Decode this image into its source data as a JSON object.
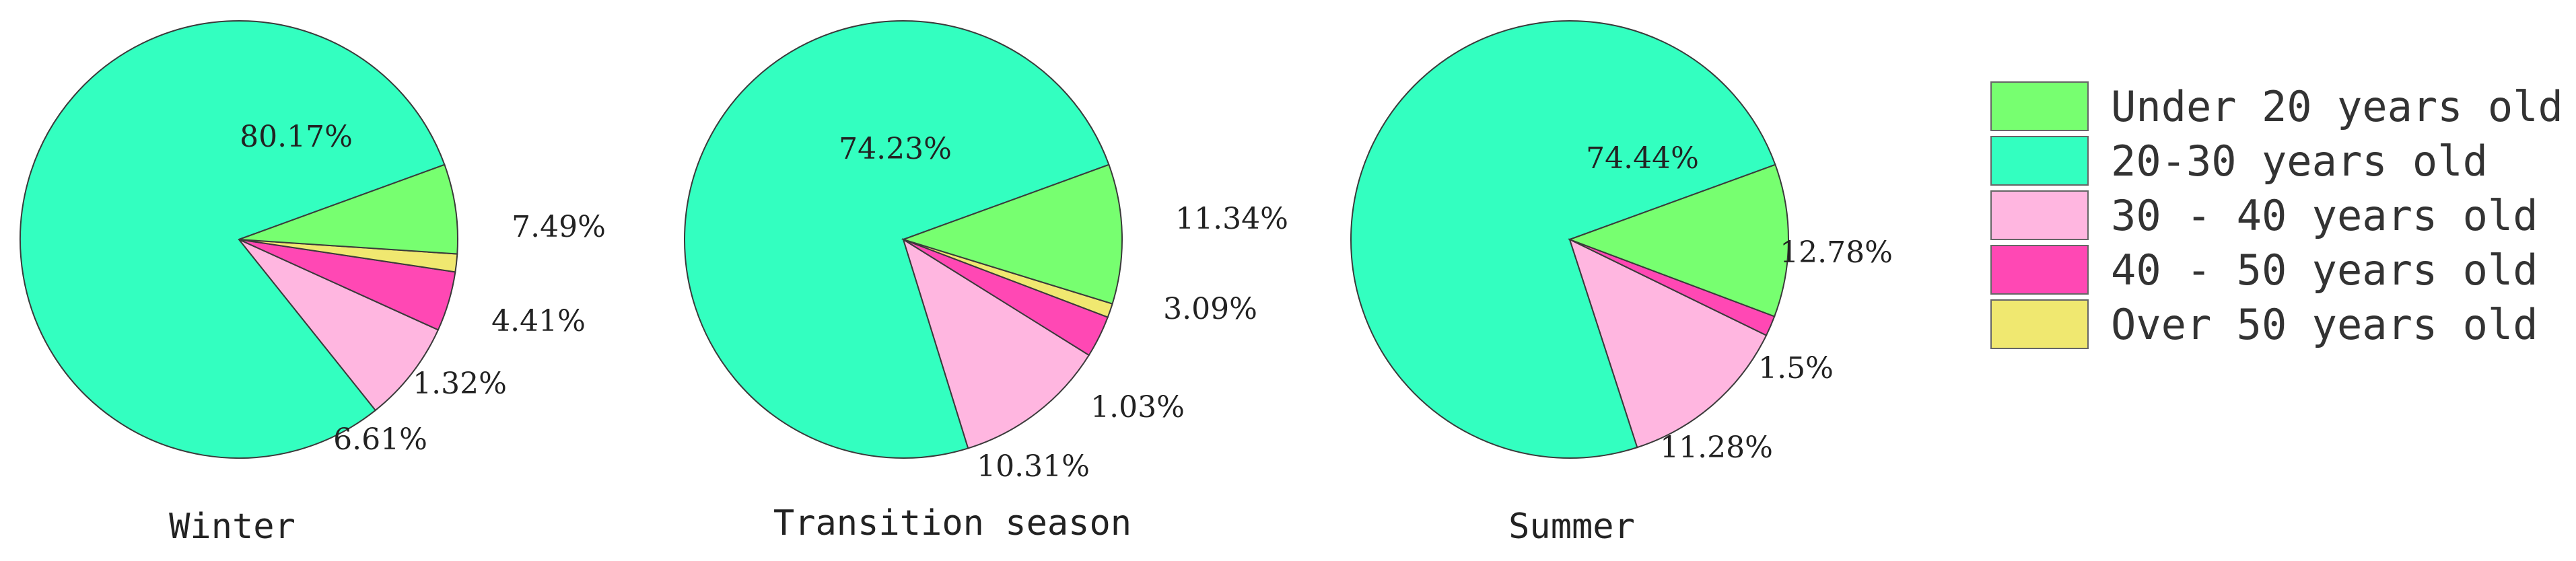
{
  "chart_data": [
    {
      "type": "pie",
      "title": "Winter",
      "slices": [
        {
          "category": "20-30 years old",
          "value": 80.17,
          "label": "80.17%"
        },
        {
          "category": "30 - 40 years old",
          "value": 7.49,
          "label": "7.49%"
        },
        {
          "category": "40 - 50 years old",
          "value": 4.41,
          "label": "4.41%"
        },
        {
          "category": "Over 50 years old",
          "value": 1.32,
          "label": "1.32%"
        },
        {
          "category": "Under 20 years old",
          "value": 6.61,
          "label": "6.61%"
        }
      ]
    },
    {
      "type": "pie",
      "title": "Transition season",
      "slices": [
        {
          "category": "20-30 years old",
          "value": 74.23,
          "label": "74.23%"
        },
        {
          "category": "30 - 40 years old",
          "value": 11.34,
          "label": "11.34%"
        },
        {
          "category": "40 - 50 years old",
          "value": 3.09,
          "label": "3.09%"
        },
        {
          "category": "Over 50 years old",
          "value": 1.03,
          "label": "1.03%"
        },
        {
          "category": "Under 20 years old",
          "value": 10.31,
          "label": "10.31%"
        }
      ]
    },
    {
      "type": "pie",
      "title": "Summer",
      "slices": [
        {
          "category": "20-30 years old",
          "value": 74.44,
          "label": "74.44%"
        },
        {
          "category": "30 - 40 years old",
          "value": 12.78,
          "label": "12.78%"
        },
        {
          "category": "40 - 50 years old",
          "value": 1.5,
          "label": "1.5%"
        },
        {
          "category": "Under 20 years old",
          "value": 11.28,
          "label": "11.28%"
        }
      ]
    }
  ],
  "legend": {
    "placement": "right",
    "entries": [
      {
        "label": "Under 20 years old",
        "color": "#77ff70"
      },
      {
        "label": "20-30 years old",
        "color": "#33ffc0"
      },
      {
        "label": "30 - 40 years old",
        "color": "#ffb6e0"
      },
      {
        "label": "40 - 50 years old",
        "color": "#ff48b4"
      },
      {
        "label": "Over 50 years old",
        "color": "#f0e870"
      }
    ]
  }
}
